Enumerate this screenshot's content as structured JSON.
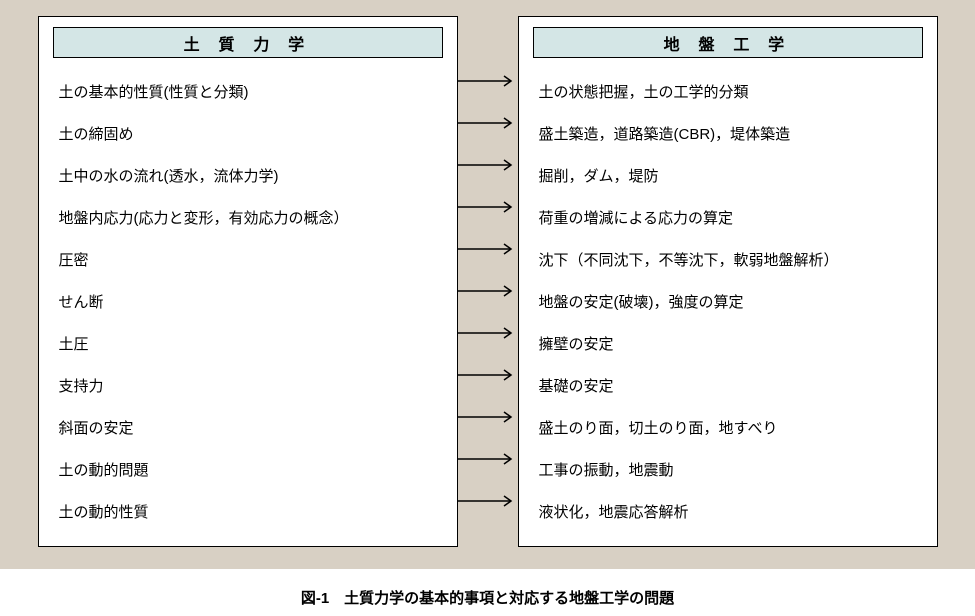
{
  "background_color": "#d8d0c4",
  "panel_background": "#ffffff",
  "panel_border_color": "#000000",
  "header_fill": "#d4e6e6",
  "text_color": "#000000",
  "font_size_row": 15,
  "font_size_header": 16,
  "font_size_caption": 15,
  "left": {
    "title": "土 質 力 学",
    "items": [
      "土の基本的性質(性質と分類)",
      "土の締固め",
      "土中の水の流れ(透水，流体力学)",
      "地盤内応力(応力と変形，有効応力の概念）",
      "圧密",
      "せん断",
      "土圧",
      "支持力",
      "斜面の安定",
      "土の動的問題",
      "土の動的性質"
    ]
  },
  "right": {
    "title": "地 盤 工 学",
    "items": [
      "土の状態把握，土の工学的分類",
      "盛土築造，道路築造(CBR)，堤体築造",
      "掘削，ダム，堤防",
      "荷重の増減による応力の算定",
      "沈下（不同沈下，不等沈下，軟弱地盤解析）",
      "地盤の安定(破壊)，強度の算定",
      "擁壁の安定",
      "基礎の安定",
      "盛土のり面，切土のり面，地すべり",
      "工事の振動，地震動",
      "液状化，地震応答解析"
    ]
  },
  "arrow": {
    "color": "#000000",
    "count": 11,
    "stroke_width": 1.5,
    "length": 52,
    "head_size": 6
  },
  "caption": "図-1　土質力学の基本的事項と対応する地盤工学の問題"
}
